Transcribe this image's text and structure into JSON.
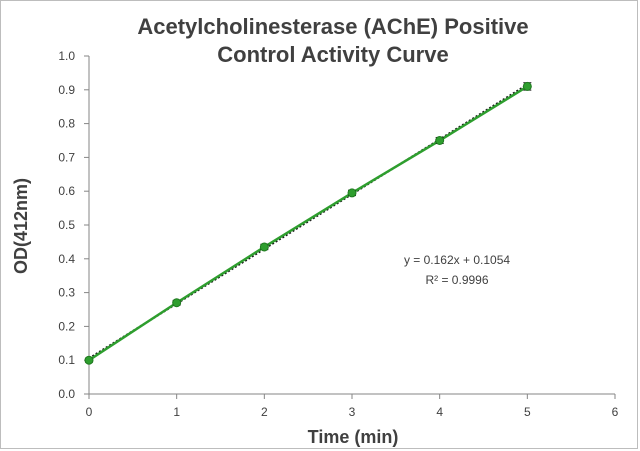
{
  "chart_data": {
    "type": "scatter",
    "title_lines": [
      "Acetylcholinesterase (AChE) Positive",
      "Control Activity Curve"
    ],
    "xlabel": "Time (min)",
    "ylabel": "OD(412nm)",
    "xlim": [
      0,
      6
    ],
    "ylim": [
      0,
      1.0
    ],
    "x_ticks": [
      "0",
      "1",
      "2",
      "3",
      "4",
      "5",
      "6"
    ],
    "y_ticks": [
      "0.0",
      "0.1",
      "0.2",
      "0.3",
      "0.4",
      "0.5",
      "0.6",
      "0.7",
      "0.8",
      "0.9",
      "1.0"
    ],
    "grid": false,
    "series": [
      {
        "x": [
          0,
          1,
          2,
          3,
          4,
          5
        ],
        "y": [
          0.1,
          0.27,
          0.435,
          0.595,
          0.75,
          0.91
        ],
        "error": [
          0.003,
          0.004,
          0.005,
          0.005,
          0.006,
          0.008
        ],
        "color": "#2e9e2e"
      }
    ],
    "trendline": {
      "slope": 0.162,
      "intercept": 0.1054,
      "color": "#1a1a1a",
      "style": "dotted",
      "equation_text": "y = 0.162x + 0.1054",
      "r2_text": "R² = 0.9996"
    }
  }
}
